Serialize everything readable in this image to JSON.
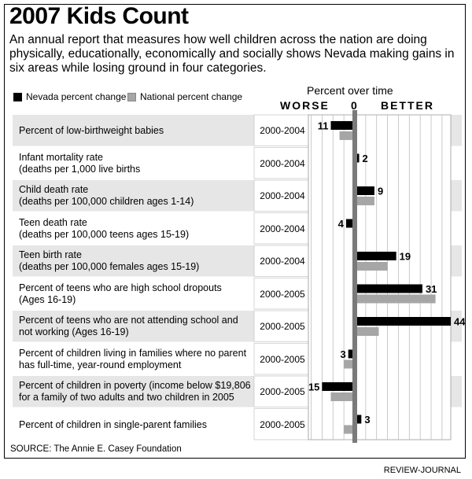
{
  "chart_data": {
    "type": "bar",
    "title": "2007 Kids Count",
    "subtitle": "An annual report that measures how well children across the nation are doing physically, educationally, economically and socially shows Nevada making gains in six areas while losing ground in four categories.",
    "axis_title": "Percent over time",
    "worse_label": "WORSE",
    "zero_label": "0",
    "better_label": "BETTER",
    "categories": [
      {
        "label": [
          "Percent of low-birthweight babies"
        ],
        "period": "2000-2004"
      },
      {
        "label": [
          "Infant mortality rate",
          "(deaths per 1,000 live births"
        ],
        "period": "2000-2004"
      },
      {
        "label": [
          "Child death rate",
          "(deaths per 100,000 children ages 1-14)"
        ],
        "period": "2000-2004"
      },
      {
        "label": [
          "Teen death rate",
          "(deaths per 100,000 teens ages 15-19)"
        ],
        "period": "2000-2004"
      },
      {
        "label": [
          "Teen birth rate",
          "(deaths per 100,000 females ages 15-19)"
        ],
        "period": "2000-2004"
      },
      {
        "label": [
          "Percent of teens who are high school dropouts",
          "(Ages 16-19)"
        ],
        "period": "2000-2005"
      },
      {
        "label": [
          "Percent of teens who are not attending school and",
          "not working (Ages 16-19)"
        ],
        "period": "2000-2005"
      },
      {
        "label": [
          "Percent of children living in families where no parent",
          "has full-time, year-round employment"
        ],
        "period": "2000-2005"
      },
      {
        "label": [
          "Percent of children in poverty (income below $19,806",
          "for a family of two adults and two children in 2005"
        ],
        "period": "2000-2005"
      },
      {
        "label": [
          "Percent of children in single-parent families"
        ],
        "period": "2000-2005"
      }
    ],
    "series": [
      {
        "name": "Nevada percent change",
        "color": "#000000",
        "values": [
          -11,
          2,
          9,
          -4,
          19,
          31,
          44,
          -3,
          -15,
          3
        ],
        "labels": [
          "11",
          "2",
          "9",
          "4",
          "19",
          "31",
          "44",
          "3",
          "15",
          "3"
        ]
      },
      {
        "name": "National percent change",
        "color": "#a6a6a6",
        "values": [
          -7,
          1,
          9,
          1,
          15,
          37,
          11,
          -5,
          -11,
          -5
        ]
      }
    ],
    "xlim": [
      -26,
      44
    ],
    "source": "SOURCE: The Annie E. Casey Foundation",
    "credit": "REVIEW-JOURNAL"
  }
}
